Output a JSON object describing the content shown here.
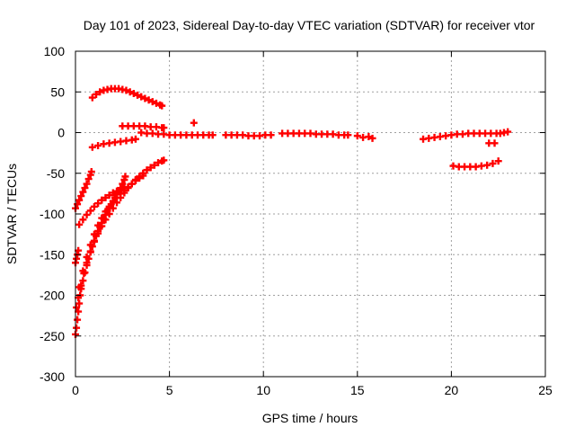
{
  "chart_data": {
    "type": "scatter",
    "title": "Day 101 of 2023, Sidereal Day-to-day VTEC variation (SDTVAR) for receiver vtor",
    "xlabel": "GPS time / hours",
    "ylabel": "SDTVAR / TECUs",
    "xlim": [
      0,
      25
    ],
    "ylim": [
      -300,
      100
    ],
    "xticks": [
      0,
      5,
      10,
      15,
      20,
      25
    ],
    "yticks": [
      -300,
      -250,
      -200,
      -150,
      -100,
      -50,
      0,
      50,
      100
    ],
    "grid": true,
    "marker": "plus",
    "color": "#ff0000",
    "series": [
      {
        "points": [
          [
            0.0,
            -248
          ],
          [
            0.05,
            -240
          ],
          [
            0.1,
            -230
          ],
          [
            0.15,
            -220
          ],
          [
            0.2,
            -210
          ],
          [
            0.25,
            -200
          ],
          [
            0.3,
            -192
          ],
          [
            0.4,
            -182
          ],
          [
            0.5,
            -172
          ],
          [
            0.6,
            -163
          ],
          [
            0.7,
            -155
          ],
          [
            0.8,
            -147
          ],
          [
            0.9,
            -140
          ],
          [
            1.0,
            -133
          ],
          [
            1.1,
            -127
          ],
          [
            1.2,
            -121
          ],
          [
            1.3,
            -116
          ],
          [
            1.4,
            -111
          ],
          [
            1.5,
            -106
          ],
          [
            1.6,
            -101
          ],
          [
            1.7,
            -96
          ],
          [
            1.8,
            -92
          ],
          [
            1.9,
            -88
          ],
          [
            2.0,
            -84
          ],
          [
            2.1,
            -80
          ],
          [
            2.2,
            -76
          ],
          [
            2.3,
            -72
          ],
          [
            2.4,
            -68
          ],
          [
            2.5,
            -63
          ],
          [
            2.6,
            -58
          ],
          [
            2.65,
            -54
          ],
          [
            0.05,
            -215
          ],
          [
            0.15,
            -203
          ],
          [
            0.3,
            -188
          ],
          [
            0.45,
            -173
          ],
          [
            0.6,
            -160
          ],
          [
            0.8,
            -146
          ],
          [
            1.0,
            -134
          ],
          [
            1.2,
            -124
          ],
          [
            1.4,
            -115
          ],
          [
            1.6,
            -107
          ],
          [
            1.8,
            -100
          ],
          [
            2.0,
            -93
          ],
          [
            2.2,
            -86
          ],
          [
            2.4,
            -80
          ],
          [
            2.6,
            -74
          ],
          [
            2.8,
            -68
          ],
          [
            3.0,
            -63
          ],
          [
            3.2,
            -58
          ],
          [
            3.4,
            -54
          ],
          [
            3.6,
            -50
          ],
          [
            3.8,
            -46
          ],
          [
            4.0,
            -43
          ],
          [
            4.2,
            -40
          ],
          [
            4.4,
            -37
          ],
          [
            4.6,
            -35
          ],
          [
            4.7,
            -34
          ],
          [
            0.2,
            -190
          ],
          [
            0.4,
            -170
          ],
          [
            0.6,
            -153
          ],
          [
            0.8,
            -138
          ],
          [
            1.0,
            -125
          ],
          [
            1.2,
            -114
          ],
          [
            1.4,
            -105
          ],
          [
            1.6,
            -97
          ],
          [
            1.8,
            -91
          ],
          [
            2.0,
            -85
          ],
          [
            2.2,
            -80
          ],
          [
            2.4,
            -75
          ],
          [
            2.6,
            -71
          ],
          [
            2.8,
            -67
          ],
          [
            3.0,
            -63
          ],
          [
            3.2,
            -59
          ],
          [
            3.4,
            -56
          ],
          [
            3.6,
            -53
          ],
          [
            0.0,
            -160
          ],
          [
            0.05,
            -155
          ],
          [
            0.1,
            -150
          ],
          [
            0.15,
            -145
          ],
          [
            0.0,
            -93
          ],
          [
            0.1,
            -88
          ],
          [
            0.2,
            -83
          ],
          [
            0.3,
            -78
          ],
          [
            0.4,
            -73
          ],
          [
            0.5,
            -68
          ],
          [
            0.6,
            -63
          ],
          [
            0.7,
            -57
          ],
          [
            0.8,
            -52
          ],
          [
            0.85,
            -48
          ],
          [
            0.2,
            -113
          ],
          [
            0.4,
            -107
          ],
          [
            0.6,
            -101
          ],
          [
            0.8,
            -96
          ],
          [
            1.0,
            -91
          ],
          [
            1.2,
            -87
          ],
          [
            1.4,
            -83
          ],
          [
            1.6,
            -80
          ],
          [
            1.8,
            -77
          ],
          [
            2.0,
            -74
          ],
          [
            2.2,
            -72
          ],
          [
            2.4,
            -70
          ],
          [
            2.6,
            -68
          ],
          [
            0.9,
            -18
          ],
          [
            1.2,
            -16
          ],
          [
            1.5,
            -14
          ],
          [
            1.8,
            -13
          ],
          [
            2.1,
            -12
          ],
          [
            2.4,
            -11
          ],
          [
            2.7,
            -10
          ],
          [
            3.0,
            -9
          ],
          [
            3.2,
            -8
          ],
          [
            0.9,
            43
          ],
          [
            1.1,
            47
          ],
          [
            1.3,
            50
          ],
          [
            1.5,
            52
          ],
          [
            1.7,
            53
          ],
          [
            1.9,
            54
          ],
          [
            2.1,
            54
          ],
          [
            2.3,
            54
          ],
          [
            2.5,
            53
          ],
          [
            2.7,
            52
          ],
          [
            2.9,
            50
          ],
          [
            3.1,
            48
          ],
          [
            3.3,
            46
          ],
          [
            3.5,
            44
          ],
          [
            3.7,
            42
          ],
          [
            3.9,
            40
          ],
          [
            4.1,
            38
          ],
          [
            4.3,
            36
          ],
          [
            4.5,
            34
          ],
          [
            4.6,
            33
          ],
          [
            2.5,
            8
          ],
          [
            2.8,
            8
          ],
          [
            3.1,
            8
          ],
          [
            3.4,
            8
          ],
          [
            3.7,
            8
          ],
          [
            4.0,
            7
          ],
          [
            4.3,
            7
          ],
          [
            4.6,
            6
          ],
          [
            4.7,
            6
          ],
          [
            3.5,
            0
          ],
          [
            3.8,
            -1
          ],
          [
            4.1,
            -1
          ],
          [
            4.4,
            -2
          ],
          [
            4.7,
            -2
          ],
          [
            5.0,
            -3
          ],
          [
            5.3,
            -3
          ],
          [
            5.6,
            -3
          ],
          [
            5.9,
            -3
          ],
          [
            6.2,
            -3
          ],
          [
            6.5,
            -3
          ],
          [
            6.8,
            -3
          ],
          [
            7.1,
            -3
          ],
          [
            7.3,
            -3
          ],
          [
            6.3,
            12
          ],
          [
            8.0,
            -3
          ],
          [
            8.3,
            -3
          ],
          [
            8.6,
            -3
          ],
          [
            8.9,
            -3
          ],
          [
            9.2,
            -4
          ],
          [
            9.5,
            -4
          ],
          [
            9.8,
            -4
          ],
          [
            10.1,
            -3
          ],
          [
            10.4,
            -3
          ],
          [
            11.0,
            -1
          ],
          [
            11.3,
            -1
          ],
          [
            11.6,
            -1
          ],
          [
            11.9,
            -1
          ],
          [
            12.2,
            -1
          ],
          [
            12.5,
            -1
          ],
          [
            12.8,
            -2
          ],
          [
            13.1,
            -2
          ],
          [
            13.4,
            -2
          ],
          [
            13.7,
            -2
          ],
          [
            14.0,
            -3
          ],
          [
            14.3,
            -3
          ],
          [
            14.5,
            -3
          ],
          [
            15.0,
            -4
          ],
          [
            15.3,
            -6
          ],
          [
            15.6,
            -5
          ],
          [
            15.8,
            -7
          ],
          [
            18.5,
            -8
          ],
          [
            18.8,
            -7
          ],
          [
            19.1,
            -6
          ],
          [
            19.4,
            -5
          ],
          [
            19.7,
            -4
          ],
          [
            20.0,
            -3
          ],
          [
            20.3,
            -2
          ],
          [
            20.6,
            -2
          ],
          [
            20.9,
            -1
          ],
          [
            21.2,
            -1
          ],
          [
            21.5,
            -1
          ],
          [
            21.8,
            -1
          ],
          [
            22.1,
            -1
          ],
          [
            22.4,
            -1
          ],
          [
            22.6,
            -1
          ],
          [
            22.8,
            0
          ],
          [
            23.0,
            1
          ],
          [
            20.1,
            -41
          ],
          [
            20.4,
            -42
          ],
          [
            20.7,
            -42
          ],
          [
            21.0,
            -42
          ],
          [
            21.3,
            -42
          ],
          [
            21.6,
            -41
          ],
          [
            21.9,
            -40
          ],
          [
            22.2,
            -38
          ],
          [
            22.5,
            -35
          ],
          [
            22.0,
            -13
          ],
          [
            22.3,
            -13
          ]
        ]
      }
    ]
  }
}
